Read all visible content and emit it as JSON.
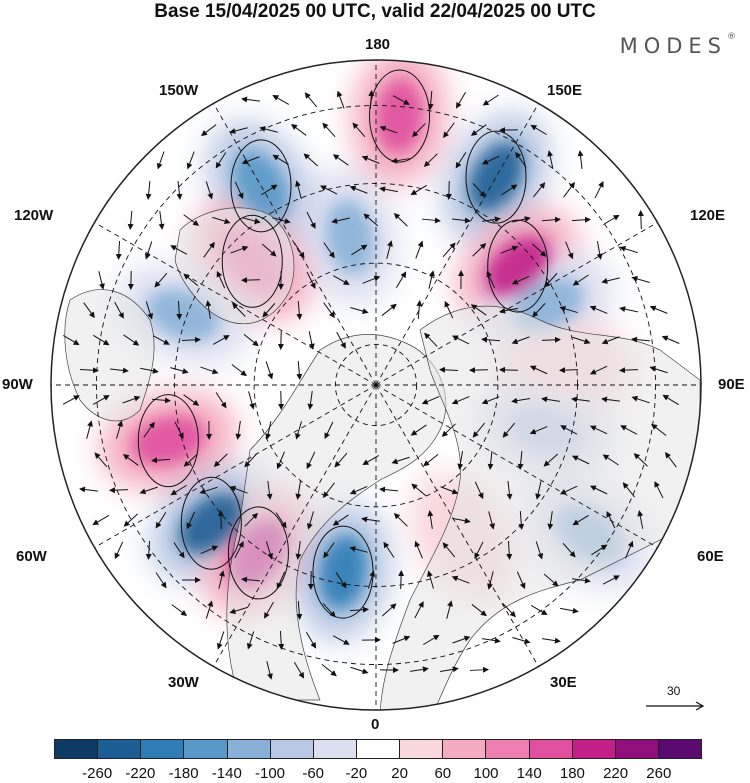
{
  "title": "Base 15/04/2025 00 UTC, valid 22/04/2025 00 UTC",
  "brand": "MODES",
  "brand_mark": "®",
  "longitude_labels": {
    "lon_180": "180",
    "lon_150w": "150W",
    "lon_150e": "150E",
    "lon_120w": "120W",
    "lon_120e": "120E",
    "lon_90w": "90W",
    "lon_90e": "90E",
    "lon_60w": "60W",
    "lon_60e": "60E",
    "lon_30w": "30W",
    "lon_30e": "30E",
    "lon_0": "0"
  },
  "reference_vector": {
    "label": "30"
  },
  "colorbar": {
    "ticks": [
      "-260",
      "-220",
      "-180",
      "-140",
      "-100",
      "-60",
      "-20",
      "20",
      "60",
      "100",
      "140",
      "180",
      "220",
      "260"
    ],
    "colors": [
      "#0d3b66",
      "#1c5e94",
      "#2f7db6",
      "#5798c8",
      "#89b1d8",
      "#b8c8e4",
      "#dcdff0",
      "#ffffff",
      "#f9d7dc",
      "#f4acc0",
      "#ec7fb0",
      "#e0509f",
      "#c21f88",
      "#8f0f7b",
      "#5b0a6f"
    ]
  },
  "map": {
    "projection": "north-polar-stereographic",
    "field": "geopotential height anomaly",
    "anomaly_centres": [
      {
        "sign": "negative",
        "lon": "150W",
        "strength": -140
      },
      {
        "sign": "positive",
        "lon": "175E",
        "strength": 180
      },
      {
        "sign": "negative",
        "lon": "150E",
        "strength": -220
      },
      {
        "sign": "positive",
        "lon": "135W",
        "strength": 140
      },
      {
        "sign": "positive",
        "lon": "130E",
        "strength": 220
      },
      {
        "sign": "negative",
        "lon": "170W",
        "strength": -100
      },
      {
        "sign": "negative",
        "lon": "115E",
        "strength": -100
      },
      {
        "sign": "negative",
        "lon": "110W",
        "strength": -100
      },
      {
        "sign": "positive",
        "lon": "95E",
        "strength": 60
      },
      {
        "sign": "positive",
        "lon": "75W",
        "strength": 180
      },
      {
        "sign": "negative",
        "lon": "50W",
        "strength": -220
      },
      {
        "sign": "positive",
        "lon": "35W",
        "strength": 220
      },
      {
        "sign": "negative",
        "lon": "10W",
        "strength": -180
      },
      {
        "sign": "negative",
        "lon": "75E",
        "strength": -60
      },
      {
        "sign": "negative",
        "lon": "55E",
        "strength": -100
      },
      {
        "sign": "positive",
        "lon": "30E",
        "strength": 60
      }
    ]
  }
}
